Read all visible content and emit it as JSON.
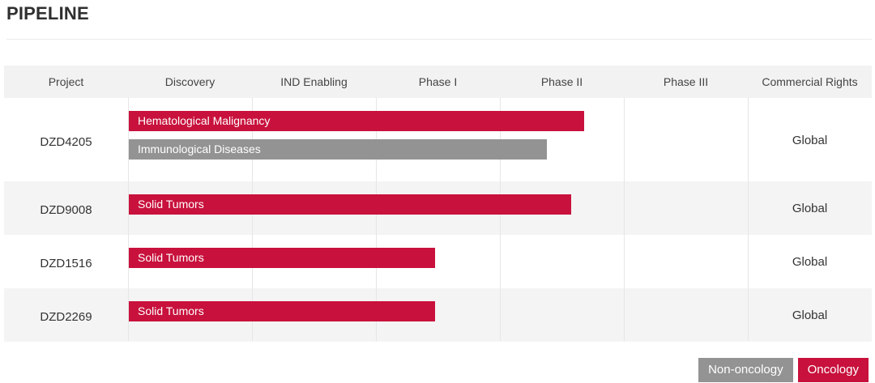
{
  "page": {
    "title": "PIPELINE"
  },
  "colors": {
    "oncology": "#c8113c",
    "non_oncology": "#939393",
    "header_bg": "#f2f2f2",
    "stripe_bg": "#f4f4f4",
    "white_bg": "#ffffff"
  },
  "chart_data": {
    "type": "bar",
    "orientation": "horizontal",
    "stages": [
      "Discovery",
      "IND Enabling",
      "Phase I",
      "Phase II",
      "Phase III"
    ],
    "columns": [
      "Project",
      "Discovery",
      "IND Enabling",
      "Phase I",
      "Phase II",
      "Phase III",
      "Commercial Rights"
    ],
    "progress_unit": "stages completed (0 = start of Discovery, 5 = end of Phase III)",
    "projects": [
      {
        "name": "DZD4205",
        "rights": "Global",
        "programs": [
          {
            "indication": "Hematological Malignancy",
            "category": "oncology",
            "progress": 3.67
          },
          {
            "indication": "Immunological Diseases",
            "category": "non_oncology",
            "progress": 3.37
          }
        ]
      },
      {
        "name": "DZD9008",
        "rights": "Global",
        "programs": [
          {
            "indication": "Solid Tumors",
            "category": "oncology",
            "progress": 3.57
          }
        ]
      },
      {
        "name": "DZD1516",
        "rights": "Global",
        "programs": [
          {
            "indication": "Solid Tumors",
            "category": "oncology",
            "progress": 2.47
          }
        ]
      },
      {
        "name": "DZD2269",
        "rights": "Global",
        "programs": [
          {
            "indication": "Solid Tumors",
            "category": "oncology",
            "progress": 2.47
          }
        ]
      }
    ],
    "legend": [
      {
        "label": "Non-oncology",
        "category": "non_oncology"
      },
      {
        "label": "Oncology",
        "category": "oncology"
      }
    ],
    "legend_position": "bottom-right"
  }
}
